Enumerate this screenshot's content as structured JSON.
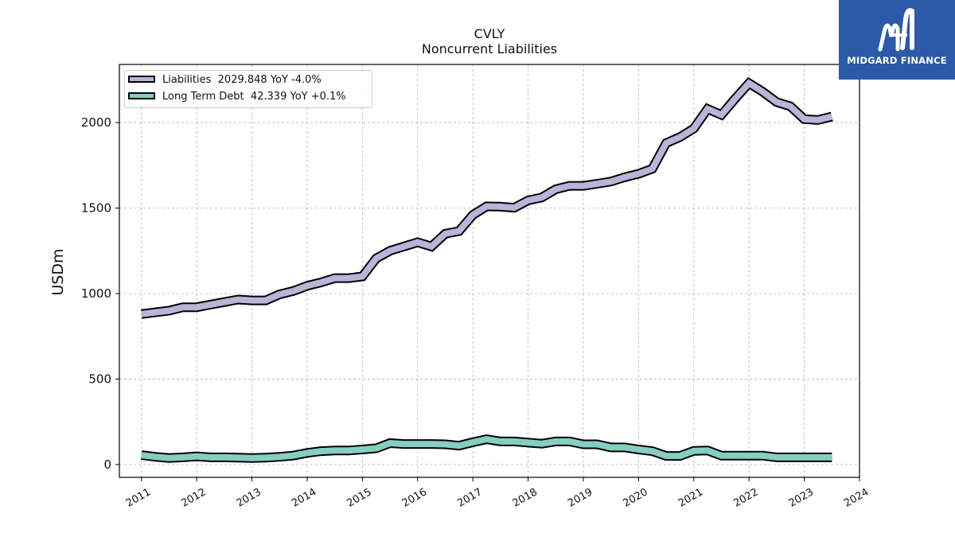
{
  "header": {
    "ticker": "CVLY",
    "subtitle": "Noncurrent  Liabilities"
  },
  "logo": {
    "name": "MIDGARD FINANCE",
    "background": "#2a5aa8"
  },
  "chart_data": {
    "type": "line",
    "title": "CVLY",
    "subtitle": "Noncurrent  Liabilities",
    "xlabel": "",
    "ylabel": "USDm",
    "xlim": [
      2010.6,
      2024.0
    ],
    "ylim": [
      -75,
      2340
    ],
    "x_ticks": [
      "2011",
      "2012",
      "2013",
      "2014",
      "2015",
      "2016",
      "2017",
      "2018",
      "2019",
      "2020",
      "2021",
      "2022",
      "2023",
      "2024"
    ],
    "y_ticks": [
      0,
      500,
      1000,
      1500,
      2000
    ],
    "grid": true,
    "legend_position": "top-left",
    "x": [
      2011.0,
      2011.25,
      2011.5,
      2011.75,
      2012.0,
      2012.25,
      2012.5,
      2012.75,
      2013.0,
      2013.25,
      2013.5,
      2013.75,
      2014.0,
      2014.25,
      2014.5,
      2014.75,
      2015.0,
      2015.25,
      2015.5,
      2015.75,
      2016.0,
      2016.25,
      2016.5,
      2016.75,
      2017.0,
      2017.25,
      2017.5,
      2017.75,
      2018.0,
      2018.25,
      2018.5,
      2018.75,
      2019.0,
      2019.25,
      2019.5,
      2019.75,
      2020.0,
      2020.25,
      2020.5,
      2020.75,
      2021.0,
      2021.25,
      2021.5,
      2021.75,
      2022.0,
      2022.25,
      2022.5,
      2022.75,
      2023.0,
      2023.25,
      2023.5
    ],
    "series": [
      {
        "name": "Liabilities  2029.848 YoY -4.0%",
        "color": "#bab4d8",
        "values": [
          880,
          890,
          900,
          920,
          920,
          935,
          950,
          965,
          960,
          960,
          995,
          1015,
          1045,
          1065,
          1090,
          1090,
          1100,
          1205,
          1250,
          1275,
          1300,
          1275,
          1350,
          1365,
          1460,
          1510,
          1508,
          1502,
          1545,
          1562,
          1610,
          1630,
          1630,
          1642,
          1655,
          1680,
          1700,
          1730,
          1880,
          1915,
          1965,
          2080,
          2045,
          2140,
          2230,
          2180,
          2120,
          2095,
          2020,
          2015,
          2035
        ]
      },
      {
        "name": "Long Term Debt  42.339 YoY +0.1%",
        "color": "#84cfbf",
        "values": [
          55,
          45,
          38,
          42,
          48,
          42,
          42,
          40,
          38,
          40,
          45,
          52,
          68,
          78,
          82,
          82,
          88,
          95,
          125,
          120,
          120,
          120,
          118,
          110,
          130,
          148,
          135,
          135,
          128,
          122,
          135,
          135,
          118,
          118,
          100,
          100,
          88,
          78,
          50,
          50,
          80,
          82,
          52,
          52,
          52,
          52,
          42,
          42,
          42,
          42,
          42
        ]
      }
    ]
  }
}
